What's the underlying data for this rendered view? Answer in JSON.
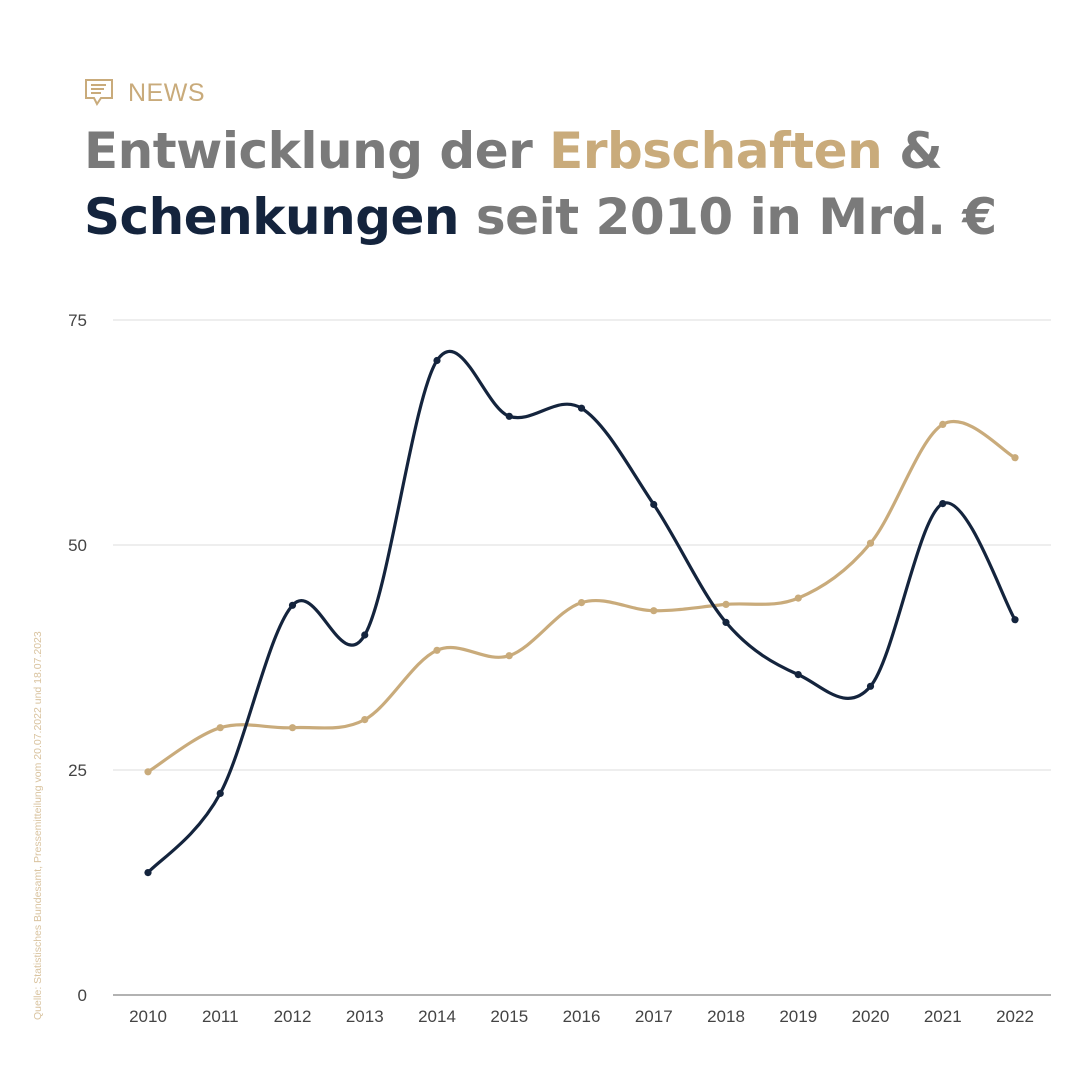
{
  "header": {
    "tag_icon": "speech-bubble-icon",
    "tag_label": "NEWS",
    "title_parts": {
      "p1": "Entwicklung der ",
      "p2": "Erbschaften",
      "p3": " &",
      "p4": "Schenkungen",
      "p5": " seit 2010 in Mrd. €"
    }
  },
  "source": "Quelle: Statistisches Bundesamt, Pressemitteilung vom 20.07.2022 und 18.07.2023",
  "colors": {
    "gold": "#c9ab7b",
    "navy": "#14243d",
    "grey": "#7a7a7a",
    "grid": "#dddddd"
  },
  "chart_data": {
    "type": "line",
    "title": "Entwicklung der Erbschaften & Schenkungen seit 2010 in Mrd. €",
    "xlabel": "",
    "ylabel": "",
    "categories": [
      "2010",
      "2011",
      "2012",
      "2013",
      "2014",
      "2015",
      "2016",
      "2017",
      "2018",
      "2019",
      "2020",
      "2021",
      "2022"
    ],
    "ylim": [
      0,
      75
    ],
    "yticks": [
      0,
      25,
      50,
      75
    ],
    "grid": true,
    "smooth": true,
    "series": [
      {
        "name": "Erbschaften",
        "color": "#c9ab7b",
        "values": [
          24.8,
          29.7,
          29.7,
          30.6,
          38.3,
          37.7,
          43.6,
          42.7,
          43.4,
          44.1,
          50.2,
          63.4,
          59.7
        ]
      },
      {
        "name": "Schenkungen",
        "color": "#14243d",
        "values": [
          13.6,
          22.4,
          43.3,
          40.0,
          70.5,
          64.3,
          65.2,
          54.5,
          41.4,
          35.6,
          34.3,
          54.6,
          41.7
        ]
      }
    ]
  }
}
